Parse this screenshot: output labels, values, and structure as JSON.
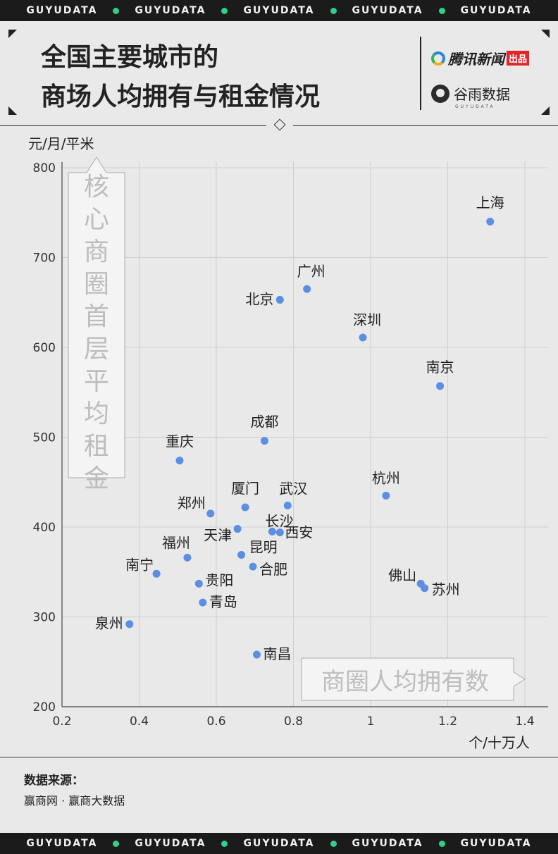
{
  "band": {
    "text": "GUYUDATA",
    "dot_color": "#2fcf8f"
  },
  "header": {
    "title_line1": "全国主要城市的",
    "title_line2": "商场人均拥有与租金情况",
    "brand1_name": "腾讯新闻",
    "brand1_tag": "出品",
    "brand2_name": "谷雨数据",
    "brand2_sub": "GUYUDATA"
  },
  "chart_data": {
    "type": "scatter",
    "ylabel": "元/月/平米",
    "xlabel": "个/十万人",
    "y_callout": "核心商圈首层平均租金",
    "x_callout": "商圈人均拥有数",
    "xlim": [
      0.2,
      1.4
    ],
    "ylim": [
      200,
      800
    ],
    "x_ticks": [
      "0.2",
      "0.4",
      "0.6",
      "0.8",
      "1",
      "1.2",
      "1.4"
    ],
    "y_ticks": [
      "200",
      "300",
      "400",
      "500",
      "600",
      "700",
      "800"
    ],
    "grid": true,
    "point_color": "#5b8fe3",
    "points": [
      {
        "name": "上海",
        "x": 1.31,
        "y": 740
      },
      {
        "name": "广州",
        "x": 0.835,
        "y": 665
      },
      {
        "name": "北京",
        "x": 0.765,
        "y": 653
      },
      {
        "name": "深圳",
        "x": 0.98,
        "y": 611
      },
      {
        "name": "南京",
        "x": 1.18,
        "y": 557
      },
      {
        "name": "成都",
        "x": 0.725,
        "y": 496
      },
      {
        "name": "重庆",
        "x": 0.505,
        "y": 474
      },
      {
        "name": "杭州",
        "x": 1.04,
        "y": 435
      },
      {
        "name": "武汉",
        "x": 0.785,
        "y": 424
      },
      {
        "name": "厦门",
        "x": 0.675,
        "y": 422
      },
      {
        "name": "郑州",
        "x": 0.585,
        "y": 415
      },
      {
        "name": "天津",
        "x": 0.655,
        "y": 398
      },
      {
        "name": "长沙",
        "x": 0.745,
        "y": 395
      },
      {
        "name": "西安",
        "x": 0.765,
        "y": 394
      },
      {
        "name": "昆明",
        "x": 0.665,
        "y": 369
      },
      {
        "name": "福州",
        "x": 0.525,
        "y": 366
      },
      {
        "name": "合肥",
        "x": 0.695,
        "y": 356
      },
      {
        "name": "南宁",
        "x": 0.445,
        "y": 348
      },
      {
        "name": "佛山",
        "x": 1.13,
        "y": 337
      },
      {
        "name": "贵阳",
        "x": 0.555,
        "y": 337
      },
      {
        "name": "苏州",
        "x": 1.14,
        "y": 332
      },
      {
        "name": "青岛",
        "x": 0.565,
        "y": 316
      },
      {
        "name": "泉州",
        "x": 0.375,
        "y": 292
      },
      {
        "name": "南昌",
        "x": 0.705,
        "y": 258
      }
    ]
  },
  "footer": {
    "source_label": "数据来源：",
    "source_text": "赢商网 · 赢商大数据"
  }
}
